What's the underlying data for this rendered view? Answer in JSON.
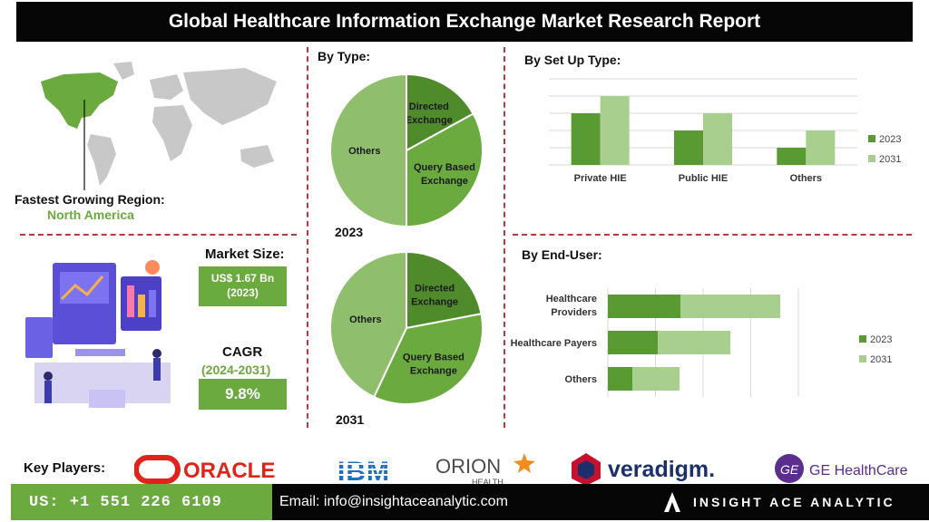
{
  "title": "Global Healthcare Information Exchange Market Research Report",
  "region": {
    "label": "Fastest Growing Region:",
    "value": "North America"
  },
  "market_size": {
    "label": "Market Size:",
    "value": "US$ 1.67 Bn",
    "year": "(2023)"
  },
  "cagr": {
    "label": "CAGR",
    "period": "(2024-2031)",
    "value": "9.8%"
  },
  "by_type": {
    "label": "By Type:"
  },
  "by_setup": {
    "label": "By Set Up Type:"
  },
  "by_enduser": {
    "label": "By End-User:"
  },
  "key_players": {
    "label": "Key Players:",
    "logos": [
      {
        "name": "ORACLE",
        "sub": ""
      },
      {
        "name": "IBM",
        "sub": ""
      },
      {
        "name": "ORION",
        "sub": "HEALTH"
      },
      {
        "name": "veradigm.",
        "sub": ""
      },
      {
        "name": "GE HealthCare",
        "sub": ""
      }
    ]
  },
  "footer": {
    "phone": "US: +1 551 226 6109",
    "email": "Email: info@insightaceanalytic.com",
    "brand": "INSIGHT ACE ANALYTIC"
  },
  "colors": {
    "dark_green": "#5a9a32",
    "mid_green": "#6aaa3f",
    "light_green": "#a9cf8e",
    "pie_dark": "#4f8a2b",
    "pie_light": "#8fbf6c",
    "red_dash": "#b73b3b"
  },
  "chart_data": [
    {
      "type": "pie",
      "year_label": "2023",
      "slices": [
        {
          "label": "Directed Exchange",
          "value": 17
        },
        {
          "label": "Query Based Exchange",
          "value": 33
        },
        {
          "label": "Others",
          "value": 50
        }
      ]
    },
    {
      "type": "pie",
      "year_label": "2031",
      "slices": [
        {
          "label": "Directed Exchange",
          "value": 22
        },
        {
          "label": "Query Based Exchange",
          "value": 35
        },
        {
          "label": "Others",
          "value": 43
        }
      ]
    },
    {
      "type": "bar",
      "categories": [
        "Private HIE",
        "Public HIE",
        "Others"
      ],
      "series": [
        {
          "name": "2023",
          "values": [
            60,
            40,
            20
          ]
        },
        {
          "name": "2031",
          "values": [
            80,
            60,
            40
          ]
        }
      ],
      "ylim": [
        0,
        100
      ],
      "grid": true,
      "legend": "right"
    },
    {
      "type": "bar",
      "orientation": "horizontal",
      "stacked": true,
      "categories": [
        "Healthcare Providers",
        "Healthcare Payers",
        "Others"
      ],
      "series": [
        {
          "name": "2023",
          "values": [
            80,
            55,
            27
          ]
        },
        {
          "name": "2031",
          "values": [
            110,
            80,
            52
          ]
        }
      ],
      "xlim": [
        0,
        210
      ],
      "grid": true,
      "legend": "right"
    }
  ]
}
